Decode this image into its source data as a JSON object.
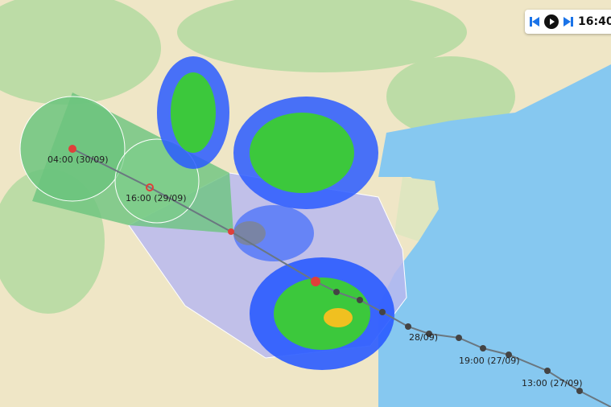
{
  "colors": {
    "land": "#efe6c6",
    "forest": "#b9d9a4",
    "sea": "#86c8f0",
    "forecast_cone_near": "#b4b4ee",
    "forecast_cone_far": "#7cc98a",
    "track": "#6a7780",
    "radar_low": "#2a5bff",
    "radar_mid": "#3cc83c",
    "radar_high": "#f0c020"
  },
  "player": {
    "time": "16:40",
    "prev_icon": "skip-back-icon",
    "play_icon": "play-icon",
    "next_icon": "skip-forward-icon"
  },
  "forecast_labels": [
    "04:00 (30/09)",
    "16:00 (29/09)"
  ],
  "history_labels": [
    "28/09)",
    "19:00 (27/09)",
    "13:00 (27/09)"
  ]
}
